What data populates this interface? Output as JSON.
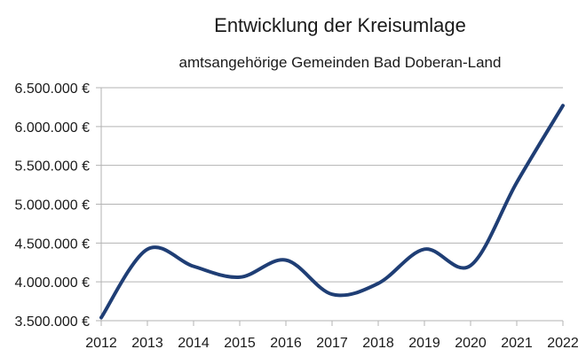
{
  "chart_data": {
    "type": "line",
    "title": "Entwicklung der Kreisumlage",
    "subtitle": "amtsangehörige Gemeinden Bad Doberan-Land",
    "xlabel": "",
    "ylabel": "",
    "x": [
      2012,
      2013,
      2014,
      2015,
      2016,
      2017,
      2018,
      2019,
      2020,
      2021,
      2022
    ],
    "xtick_labels": [
      "2012",
      "2013",
      "2014",
      "2015",
      "2016",
      "2017",
      "2018",
      "2019",
      "2020",
      "2021",
      "2022"
    ],
    "series": [
      {
        "values": [
          3540000,
          4420000,
          4200000,
          4060000,
          4280000,
          3840000,
          3980000,
          4420000,
          4210000,
          5280000,
          6270000
        ]
      }
    ],
    "ylim": [
      3500000,
      6500000
    ],
    "yticks": [
      3500000,
      4000000,
      4500000,
      5000000,
      5500000,
      6000000,
      6500000
    ],
    "ytick_labels": [
      "3.500.000 €",
      "4.000.000 €",
      "4.500.000 €",
      "5.000.000 €",
      "5.500.000 €",
      "6.000.000 €",
      "6.500.000 €"
    ],
    "grid": true,
    "legend": "none",
    "line_color": "#1f3e75"
  }
}
